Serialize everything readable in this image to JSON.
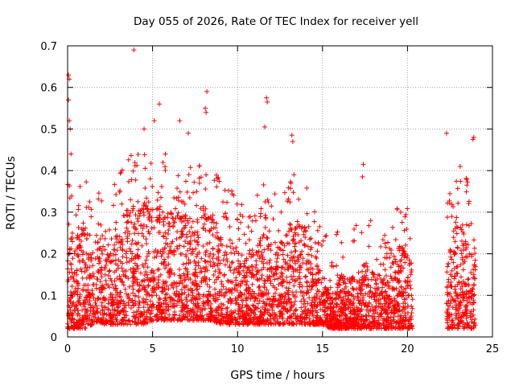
{
  "chart_data": {
    "type": "scatter",
    "title": "Day 055 of 2026, Rate Of TEC Index for receiver yell",
    "xlabel": "GPS time / hours",
    "ylabel": "ROTI / TECUs",
    "xlim": [
      0,
      25
    ],
    "ylim": [
      0,
      0.7
    ],
    "x_ticks": [
      0,
      5,
      10,
      15,
      20,
      25
    ],
    "y_ticks": [
      0,
      0.1,
      0.2,
      0.3,
      0.4,
      0.5,
      0.6,
      0.7
    ],
    "x_tick_labels": [
      "0",
      "5",
      "10",
      "15",
      "20",
      "25"
    ],
    "y_tick_labels": [
      "0",
      "0.1",
      "0.2",
      "0.3",
      "0.4",
      "0.5",
      "0.6",
      "0.7"
    ],
    "grid": true,
    "marker": "plus",
    "series_color": "#ff0000",
    "data_gaps_hours": [
      [
        20.3,
        22.3
      ]
    ],
    "envelope": {
      "x": [
        0,
        0.5,
        1,
        1.5,
        2,
        2.5,
        3,
        3.5,
        4,
        4.5,
        5,
        5.5,
        6,
        6.5,
        7,
        7.5,
        8,
        8.5,
        9,
        9.5,
        10,
        10.5,
        11,
        11.5,
        12,
        12.5,
        13,
        13.5,
        14,
        14.5,
        15,
        15.5,
        16,
        16.5,
        17,
        17.5,
        18,
        18.5,
        19,
        19.5,
        20,
        20.3,
        22.3,
        22.5,
        23,
        23.5,
        24
      ],
      "upper_typical": [
        0.27,
        0.24,
        0.27,
        0.22,
        0.25,
        0.24,
        0.27,
        0.31,
        0.33,
        0.34,
        0.32,
        0.33,
        0.32,
        0.3,
        0.3,
        0.28,
        0.32,
        0.29,
        0.26,
        0.24,
        0.22,
        0.2,
        0.22,
        0.25,
        0.24,
        0.22,
        0.26,
        0.28,
        0.27,
        0.22,
        0.15,
        0.1,
        0.16,
        0.14,
        0.15,
        0.18,
        0.16,
        0.14,
        0.18,
        0.22,
        0.2,
        0.17,
        0.2,
        0.24,
        0.28,
        0.27,
        0.2
      ],
      "lower_typical": [
        0.02,
        0.02,
        0.02,
        0.03,
        0.03,
        0.03,
        0.03,
        0.03,
        0.03,
        0.03,
        0.04,
        0.04,
        0.04,
        0.04,
        0.04,
        0.04,
        0.04,
        0.04,
        0.03,
        0.03,
        0.03,
        0.03,
        0.03,
        0.03,
        0.03,
        0.03,
        0.03,
        0.03,
        0.03,
        0.03,
        0.03,
        0.02,
        0.02,
        0.02,
        0.02,
        0.02,
        0.02,
        0.02,
        0.02,
        0.02,
        0.02,
        0.02,
        0.02,
        0.02,
        0.02,
        0.02,
        0.02
      ]
    },
    "notable_points": [
      {
        "x": 0.05,
        "y": 0.63
      },
      {
        "x": 0.1,
        "y": 0.62
      },
      {
        "x": 0.05,
        "y": 0.57
      },
      {
        "x": 0.1,
        "y": 0.52
      },
      {
        "x": 0.15,
        "y": 0.5
      },
      {
        "x": 0.2,
        "y": 0.44
      },
      {
        "x": 3.9,
        "y": 0.69
      },
      {
        "x": 5.4,
        "y": 0.56
      },
      {
        "x": 4.5,
        "y": 0.5
      },
      {
        "x": 5.1,
        "y": 0.52
      },
      {
        "x": 6.6,
        "y": 0.52
      },
      {
        "x": 7.1,
        "y": 0.49
      },
      {
        "x": 8.2,
        "y": 0.59
      },
      {
        "x": 8.1,
        "y": 0.55
      },
      {
        "x": 8.15,
        "y": 0.54
      },
      {
        "x": 11.7,
        "y": 0.575
      },
      {
        "x": 11.75,
        "y": 0.565
      },
      {
        "x": 11.6,
        "y": 0.505
      },
      {
        "x": 13.2,
        "y": 0.485
      },
      {
        "x": 13.25,
        "y": 0.47
      },
      {
        "x": 17.4,
        "y": 0.415
      },
      {
        "x": 17.35,
        "y": 0.385
      },
      {
        "x": 22.3,
        "y": 0.49
      },
      {
        "x": 23.9,
        "y": 0.48
      },
      {
        "x": 23.85,
        "y": 0.475
      },
      {
        "x": 23.1,
        "y": 0.41
      },
      {
        "x": 23.5,
        "y": 0.365
      },
      {
        "x": 19.6,
        "y": 0.3
      }
    ]
  }
}
